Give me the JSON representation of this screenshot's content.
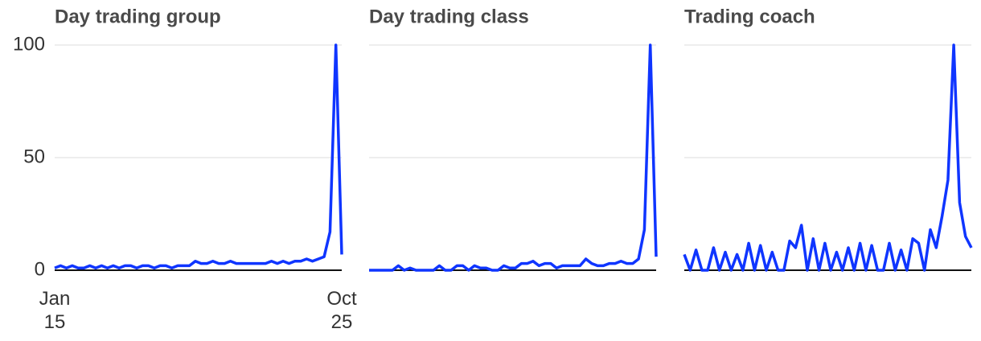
{
  "chart_data": [
    {
      "type": "line",
      "title": "Day trading group",
      "color": "#0f35ff",
      "categories": [
        "Jan 15",
        null,
        null,
        null,
        null,
        null,
        null,
        null,
        null,
        null,
        null,
        null,
        null,
        null,
        null,
        null,
        null,
        null,
        null,
        null,
        null,
        null,
        null,
        null,
        null,
        null,
        null,
        null,
        null,
        null,
        null,
        null,
        null,
        null,
        null,
        null,
        null,
        null,
        null,
        null,
        null,
        null,
        null,
        null,
        null,
        null,
        null,
        null,
        null,
        "Oct 25"
      ],
      "values": [
        1,
        2,
        1,
        2,
        1,
        1,
        2,
        1,
        2,
        1,
        2,
        1,
        2,
        2,
        1,
        2,
        2,
        1,
        2,
        2,
        1,
        2,
        2,
        2,
        4,
        3,
        3,
        4,
        3,
        3,
        4,
        3,
        3,
        3,
        3,
        3,
        3,
        4,
        3,
        4,
        3,
        4,
        4,
        5,
        4,
        5,
        6,
        17,
        100,
        7
      ],
      "ylim": [
        0,
        100
      ],
      "yticks": [
        0,
        50,
        100
      ],
      "grid": true
    },
    {
      "type": "line",
      "title": "Day trading class",
      "color": "#0f35ff",
      "categories": [
        null,
        null,
        null,
        null,
        null,
        null,
        null,
        null,
        null,
        null,
        null,
        null,
        null,
        null,
        null,
        null,
        null,
        null,
        null,
        null,
        null,
        null,
        null,
        null,
        null,
        null,
        null,
        null,
        null,
        null,
        null,
        null,
        null,
        null,
        null,
        null,
        null,
        null,
        null,
        null,
        null,
        null,
        null,
        null,
        null,
        null,
        null,
        null,
        null,
        null
      ],
      "values": [
        0,
        0,
        0,
        0,
        0,
        2,
        0,
        1,
        0,
        0,
        0,
        0,
        2,
        0,
        0,
        2,
        2,
        0,
        2,
        1,
        1,
        0,
        0,
        2,
        1,
        1,
        3,
        3,
        4,
        2,
        3,
        3,
        1,
        2,
        2,
        2,
        2,
        5,
        3,
        2,
        2,
        3,
        3,
        4,
        3,
        3,
        5,
        18,
        100,
        6
      ],
      "ylim": [
        0,
        100
      ],
      "yticks": [
        0,
        50,
        100
      ],
      "grid": true
    },
    {
      "type": "line",
      "title": "Trading coach",
      "color": "#0f35ff",
      "categories": [
        null,
        null,
        null,
        null,
        null,
        null,
        null,
        null,
        null,
        null,
        null,
        null,
        null,
        null,
        null,
        null,
        null,
        null,
        null,
        null,
        null,
        null,
        null,
        null,
        null,
        null,
        null,
        null,
        null,
        null,
        null,
        null,
        null,
        null,
        null,
        null,
        null,
        null,
        null,
        null,
        null,
        null,
        null,
        null,
        null,
        null,
        null,
        null,
        null,
        null
      ],
      "values": [
        7,
        0,
        9,
        0,
        0,
        10,
        0,
        8,
        0,
        7,
        0,
        12,
        0,
        11,
        0,
        8,
        0,
        0,
        13,
        10,
        20,
        0,
        14,
        0,
        12,
        0,
        8,
        0,
        10,
        0,
        12,
        0,
        11,
        0,
        0,
        12,
        0,
        9,
        0,
        14,
        12,
        0,
        18,
        10,
        24,
        40,
        100,
        30,
        15,
        10
      ],
      "ylim": [
        0,
        100
      ],
      "yticks": [
        0,
        50,
        100
      ],
      "grid": true
    }
  ]
}
